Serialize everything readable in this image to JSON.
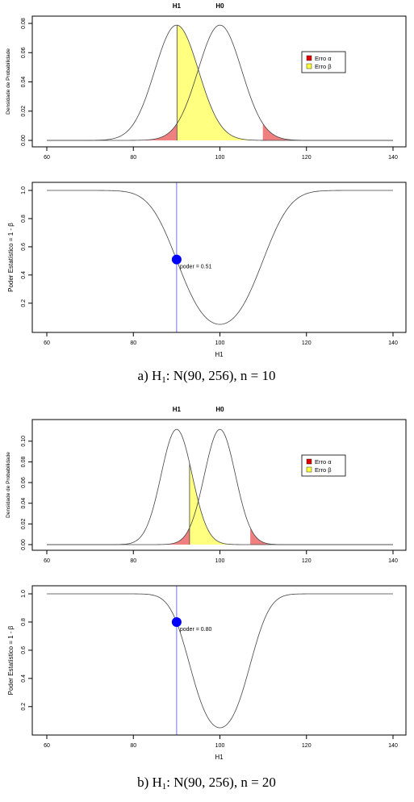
{
  "colors": {
    "alpha_fill": "#f08080",
    "beta_fill": "#ffff80",
    "legend_alpha": "#e00000",
    "legend_beta": "#ffff40",
    "power_line": "#7070ff",
    "power_point": "#0000ff"
  },
  "panels": [
    {
      "caption": {
        "prefix": "a) H",
        "sub": "1",
        "suffix": ": N(90, 256), n = 10"
      },
      "density": {
        "type": "line",
        "label_h1": "H1",
        "label_h0": "H0",
        "ylabel": "Densidade de Probabilidade",
        "xlim": [
          60,
          140
        ],
        "ylim": [
          0,
          0.08
        ],
        "x_ticks": [
          60,
          80,
          100,
          120,
          140
        ],
        "y_ticks": [
          0.0,
          0.02,
          0.04,
          0.06,
          0.08
        ],
        "y_tick_labels": [
          "0.00",
          "0.02",
          "0.04",
          "0.06",
          "0.08"
        ],
        "series": [
          {
            "mean": 90,
            "sd": 5.06
          },
          {
            "mean": 100,
            "sd": 5.06
          }
        ],
        "alpha_regions": [
          [
            60,
            90.08
          ],
          [
            109.92,
            140
          ]
        ],
        "beta_region": [
          90.08,
          109.92
        ],
        "legend": {
          "placement": "right",
          "alpha": "Erro α",
          "beta": "Erro β"
        }
      },
      "power": {
        "type": "line",
        "xlabel": "H1",
        "ylabel": "Poder Estatístico = 1 - β",
        "xlim": [
          60,
          140
        ],
        "ylim": [
          0.05,
          1.0
        ],
        "x_ticks": [
          60,
          80,
          100,
          120,
          140
        ],
        "y_ticks": [
          0.2,
          0.4,
          0.6,
          0.8,
          1.0
        ],
        "y_tick_labels": [
          "0.2",
          "0.4",
          "0.6",
          "0.8",
          "1.0"
        ],
        "curve": {
          "mu0": 100,
          "se": 5.06,
          "alpha": 0.05
        },
        "vline_x": 90,
        "point": {
          "x": 90,
          "y": 0.51
        },
        "point_label": "poder =  0.51"
      }
    },
    {
      "caption": {
        "prefix": "b) H",
        "sub": "1",
        "suffix": ": N(90, 256), n = 20"
      },
      "density": {
        "type": "line",
        "label_h1": "H1",
        "label_h0": "H0",
        "ylabel": "Densidade de Probabilidade",
        "xlim": [
          60,
          140
        ],
        "ylim": [
          0,
          0.11
        ],
        "x_ticks": [
          60,
          80,
          100,
          120,
          140
        ],
        "y_ticks": [
          0.0,
          0.02,
          0.04,
          0.06,
          0.08,
          0.1
        ],
        "y_tick_labels": [
          "0.00",
          "0.02",
          "0.04",
          "0.06",
          "0.08",
          "0.10"
        ],
        "series": [
          {
            "mean": 90,
            "sd": 3.58
          },
          {
            "mean": 100,
            "sd": 3.58
          }
        ],
        "alpha_regions": [
          [
            60,
            92.99
          ],
          [
            107.01,
            140
          ]
        ],
        "beta_region": [
          92.99,
          107.01
        ],
        "legend": {
          "placement": "right",
          "alpha": "Erro α",
          "beta": "Erro β"
        }
      },
      "power": {
        "type": "line",
        "xlabel": "H1",
        "ylabel": "Poder Estatístico = 1 - β",
        "xlim": [
          60,
          140
        ],
        "ylim": [
          0.05,
          1.0
        ],
        "x_ticks": [
          60,
          80,
          100,
          120,
          140
        ],
        "y_ticks": [
          0.2,
          0.4,
          0.6,
          0.8,
          1.0
        ],
        "y_tick_labels": [
          "0.2",
          "0.4",
          "0.6",
          "0.8",
          "1.0"
        ],
        "curve": {
          "mu0": 100,
          "se": 3.58,
          "alpha": 0.05
        },
        "vline_x": 90,
        "point": {
          "x": 90,
          "y": 0.8
        },
        "point_label": "poder =  0.80"
      }
    }
  ]
}
